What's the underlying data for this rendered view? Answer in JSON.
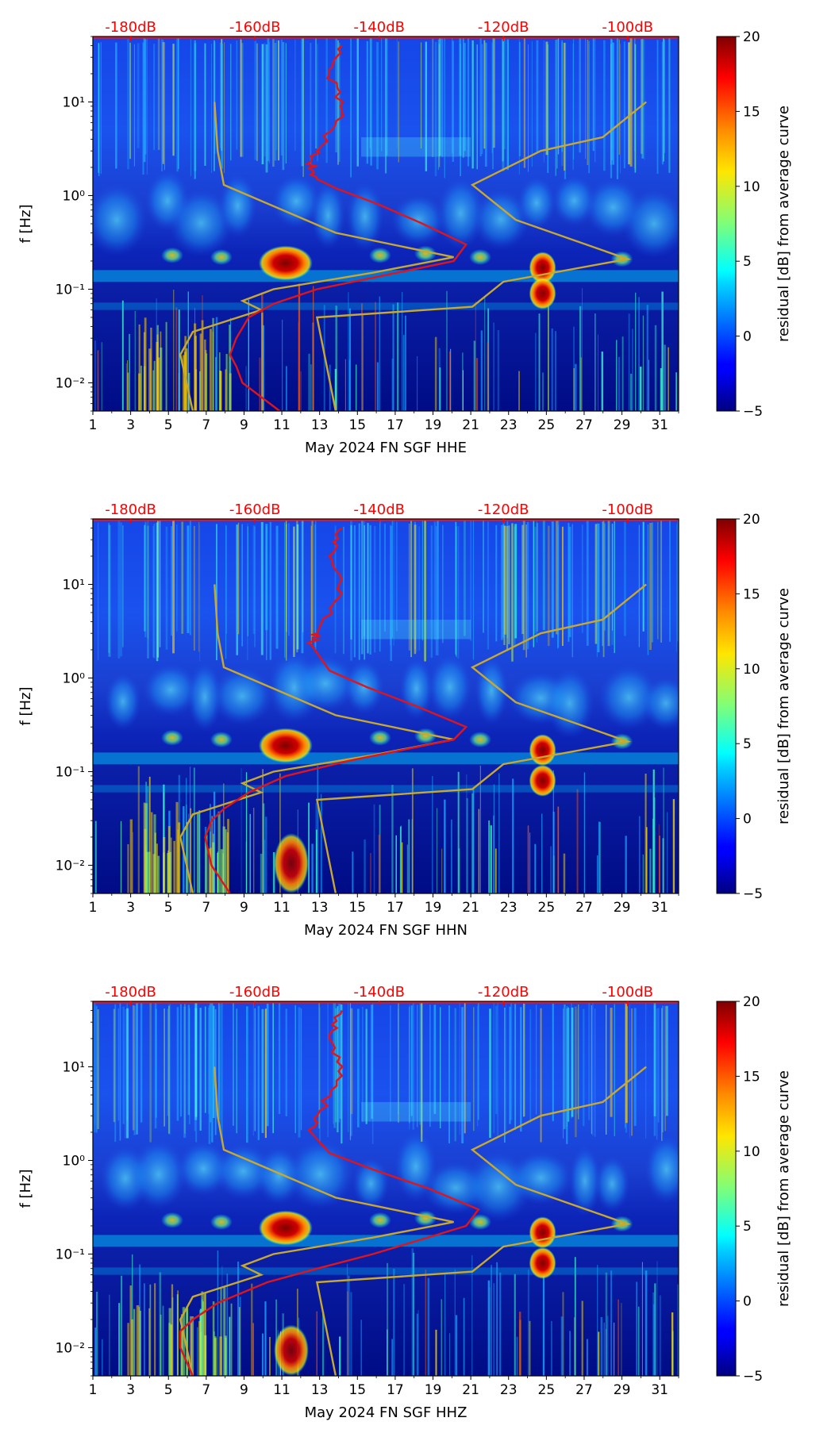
{
  "figure": {
    "kind": "spectrogram residual panels"
  },
  "colors": {
    "model_curve": "#c8a830",
    "median_curve": "#e0141a",
    "db_label": "#ff0000",
    "axis": "#000000"
  },
  "chart_data": [
    {
      "type": "heatmap",
      "title": "",
      "xlabel": "May 2024 FN SGF  HHE",
      "ylabel": "f [Hz]",
      "x_ticks": [
        "1",
        "3",
        "5",
        "7",
        "9",
        "11",
        "13",
        "15",
        "17",
        "19",
        "21",
        "23",
        "25",
        "27",
        "29",
        "31"
      ],
      "x_range": [
        1,
        32
      ],
      "y_range_hz": [
        0.005,
        50
      ],
      "y_ticks": [
        "10⁻²",
        "10⁻¹",
        "10⁰",
        "10¹"
      ],
      "top_ticks": [
        "-180dB",
        "-160dB",
        "-140dB",
        "-120dB",
        "-100dB"
      ],
      "colorbar": {
        "label": "residual [dB] from average curve",
        "range": [
          -5,
          20
        ],
        "ticks": [
          "−5",
          "0",
          "5",
          "10",
          "15",
          "20"
        ]
      },
      "series": [
        {
          "name": "noise-model bounds (dB)",
          "color": "#c8a830",
          "points": [
            [
              -170,
              0.005
            ],
            [
              -171,
              0.01
            ],
            [
              -172,
              0.02
            ],
            [
              -170,
              0.035
            ],
            [
              -159,
              0.06
            ],
            [
              -162,
              0.075
            ],
            [
              -157,
              0.1
            ],
            [
              -141,
              0.15
            ],
            [
              -128,
              0.22
            ],
            [
              -147,
              0.4
            ],
            [
              -165,
              1.3
            ],
            [
              -166,
              3
            ],
            [
              -166.5,
              10
            ],
            [
              -147,
              0.005
            ],
            [
              -150,
              0.05
            ],
            [
              -125,
              0.065
            ],
            [
              -120,
              0.12
            ],
            [
              -100,
              0.21
            ],
            [
              -118,
              0.55
            ],
            [
              -125,
              1.3
            ],
            [
              -114,
              3.0
            ],
            [
              -104,
              4.2
            ],
            [
              -97,
              10
            ]
          ]
        },
        {
          "name": "median PSD (dB)",
          "color": "#e0141a",
          "points": [
            [
              -156,
              0.005
            ],
            [
              -162,
              0.01
            ],
            [
              -163,
              0.015
            ],
            [
              -164,
              0.02
            ],
            [
              -163,
              0.03
            ],
            [
              -161,
              0.05
            ],
            [
              -157,
              0.07
            ],
            [
              -150,
              0.1
            ],
            [
              -128,
              0.2
            ],
            [
              -126,
              0.3
            ],
            [
              -133,
              0.5
            ],
            [
              -140,
              0.8
            ],
            [
              -147,
              1.2
            ],
            [
              -150,
              1.5
            ],
            [
              -151,
              2.3
            ],
            [
              -150,
              3
            ],
            [
              -146,
              8
            ],
            [
              -148,
              20
            ],
            [
              -146,
              40
            ]
          ]
        }
      ],
      "hot_spots": [
        {
          "day": 11.2,
          "f_hz": 0.19,
          "level_db": 20
        },
        {
          "day": 24.8,
          "f_hz": 0.17,
          "level_db": 20
        },
        {
          "day": 24.8,
          "f_hz": 0.09,
          "level_db": 18
        }
      ]
    },
    {
      "type": "heatmap",
      "title": "",
      "xlabel": "May 2024 FN SGF  HHN",
      "ylabel": "f [Hz]",
      "x_ticks": [
        "1",
        "3",
        "5",
        "7",
        "9",
        "11",
        "13",
        "15",
        "17",
        "19",
        "21",
        "23",
        "25",
        "27",
        "29",
        "31"
      ],
      "x_range": [
        1,
        32
      ],
      "y_range_hz": [
        0.005,
        50
      ],
      "y_ticks": [
        "10⁻²",
        "10⁻¹",
        "10⁰",
        "10¹"
      ],
      "top_ticks": [
        "-180dB",
        "-160dB",
        "-140dB",
        "-120dB",
        "-100dB"
      ],
      "colorbar": {
        "label": "residual [dB] from average curve",
        "range": [
          -5,
          20
        ],
        "ticks": [
          "−5",
          "0",
          "5",
          "10",
          "15",
          "20"
        ]
      },
      "series": [
        {
          "name": "noise-model bounds (dB)",
          "color": "#c8a830",
          "points": [
            [
              -170,
              0.005
            ],
            [
              -171,
              0.01
            ],
            [
              -172,
              0.02
            ],
            [
              -170,
              0.035
            ],
            [
              -159,
              0.06
            ],
            [
              -162,
              0.075
            ],
            [
              -157,
              0.1
            ],
            [
              -141,
              0.15
            ],
            [
              -128,
              0.22
            ],
            [
              -147,
              0.4
            ],
            [
              -165,
              1.3
            ],
            [
              -166,
              3
            ],
            [
              -166.5,
              10
            ],
            [
              -147,
              0.005
            ],
            [
              -150,
              0.05
            ],
            [
              -125,
              0.065
            ],
            [
              -120,
              0.12
            ],
            [
              -100,
              0.21
            ],
            [
              -118,
              0.55
            ],
            [
              -125,
              1.3
            ],
            [
              -114,
              3.0
            ],
            [
              -104,
              4.2
            ],
            [
              -97,
              10
            ]
          ]
        },
        {
          "name": "median PSD (dB)",
          "color": "#e0141a",
          "points": [
            [
              -164,
              0.005
            ],
            [
              -167,
              0.01
            ],
            [
              -168,
              0.02
            ],
            [
              -167,
              0.03
            ],
            [
              -165,
              0.04
            ],
            [
              -161,
              0.06
            ],
            [
              -155,
              0.09
            ],
            [
              -145,
              0.13
            ],
            [
              -128,
              0.22
            ],
            [
              -126,
              0.3
            ],
            [
              -134,
              0.5
            ],
            [
              -142,
              0.8
            ],
            [
              -148,
              1.2
            ],
            [
              -151,
              2.3
            ],
            [
              -150,
              3
            ],
            [
              -146,
              8
            ],
            [
              -148,
              20
            ],
            [
              -146,
              40
            ]
          ]
        }
      ],
      "hot_spots": [
        {
          "day": 11.2,
          "f_hz": 0.19,
          "level_db": 20
        },
        {
          "day": 24.8,
          "f_hz": 0.17,
          "level_db": 20
        },
        {
          "day": 24.8,
          "f_hz": 0.08,
          "level_db": 18
        },
        {
          "day": 11.5,
          "f_hz": 0.01,
          "level_db": 20
        }
      ]
    },
    {
      "type": "heatmap",
      "title": "",
      "xlabel": "May 2024 FN SGF  HHZ",
      "ylabel": "f [Hz]",
      "x_ticks": [
        "1",
        "3",
        "5",
        "7",
        "9",
        "11",
        "13",
        "15",
        "17",
        "19",
        "21",
        "23",
        "25",
        "27",
        "29",
        "31"
      ],
      "x_range": [
        1,
        32
      ],
      "y_range_hz": [
        0.005,
        50
      ],
      "y_ticks": [
        "10⁻²",
        "10⁻¹",
        "10⁰",
        "10¹"
      ],
      "top_ticks": [
        "-180dB",
        "-160dB",
        "-140dB",
        "-120dB",
        "-100dB"
      ],
      "colorbar": {
        "label": "residual [dB] from average curve",
        "range": [
          -5,
          20
        ],
        "ticks": [
          "−5",
          "0",
          "5",
          "10",
          "15",
          "20"
        ]
      },
      "series": [
        {
          "name": "noise-model bounds (dB)",
          "color": "#c8a830",
          "points": [
            [
              -170,
              0.005
            ],
            [
              -171,
              0.01
            ],
            [
              -172,
              0.02
            ],
            [
              -170,
              0.035
            ],
            [
              -159,
              0.06
            ],
            [
              -162,
              0.075
            ],
            [
              -157,
              0.1
            ],
            [
              -141,
              0.15
            ],
            [
              -128,
              0.22
            ],
            [
              -147,
              0.4
            ],
            [
              -165,
              1.3
            ],
            [
              -166,
              3
            ],
            [
              -166.5,
              10
            ],
            [
              -147,
              0.005
            ],
            [
              -150,
              0.05
            ],
            [
              -125,
              0.065
            ],
            [
              -120,
              0.12
            ],
            [
              -100,
              0.21
            ],
            [
              -118,
              0.55
            ],
            [
              -125,
              1.3
            ],
            [
              -114,
              3.0
            ],
            [
              -104,
              4.2
            ],
            [
              -97,
              10
            ]
          ]
        },
        {
          "name": "median PSD (dB)",
          "color": "#e0141a",
          "points": [
            [
              -170,
              0.005
            ],
            [
              -172,
              0.01
            ],
            [
              -172,
              0.015
            ],
            [
              -170,
              0.02
            ],
            [
              -166,
              0.03
            ],
            [
              -158,
              0.05
            ],
            [
              -150,
              0.07
            ],
            [
              -141,
              0.1
            ],
            [
              -126,
              0.2
            ],
            [
              -124,
              0.3
            ],
            [
              -132,
              0.5
            ],
            [
              -141,
              0.8
            ],
            [
              -148,
              1.2
            ],
            [
              -151,
              2
            ],
            [
              -150,
              3
            ],
            [
              -146,
              8
            ],
            [
              -148,
              20
            ],
            [
              -146,
              40
            ]
          ]
        }
      ],
      "hot_spots": [
        {
          "day": 11.2,
          "f_hz": 0.19,
          "level_db": 20
        },
        {
          "day": 24.8,
          "f_hz": 0.17,
          "level_db": 20
        },
        {
          "day": 24.8,
          "f_hz": 0.08,
          "level_db": 18
        },
        {
          "day": 11.5,
          "f_hz": 0.008,
          "level_db": 18
        }
      ]
    }
  ]
}
